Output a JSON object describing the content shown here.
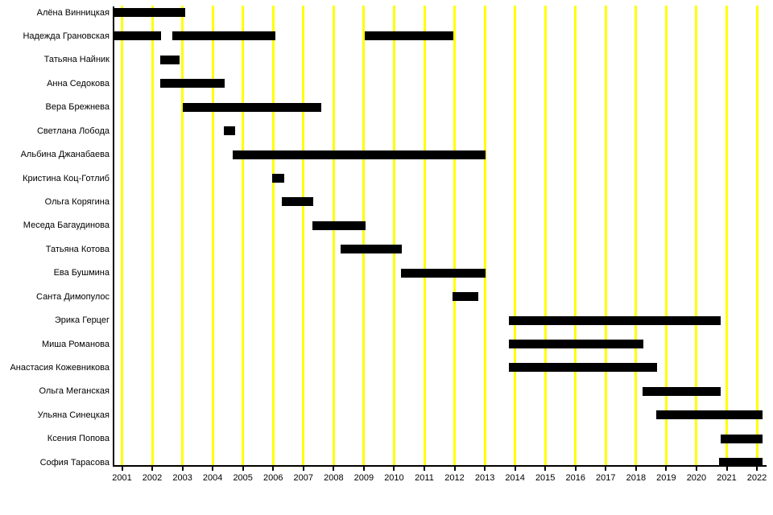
{
  "chart_data": {
    "type": "bar",
    "subtype": "gantt-timeline",
    "title": "",
    "xlabel": "",
    "ylabel": "",
    "legend": null,
    "x_ticks": [
      2001,
      2002,
      2003,
      2004,
      2005,
      2006,
      2007,
      2008,
      2009,
      2010,
      2011,
      2012,
      2013,
      2014,
      2015,
      2016,
      2017,
      2018,
      2019,
      2020,
      2021,
      2022
    ],
    "xlim": [
      2000.71,
      2022.19
    ],
    "grid": "vertical",
    "colors": {
      "bar": "#000000",
      "grid": "#ffff00",
      "axis": "#000000",
      "background": "#ffffff",
      "text": "#000000"
    },
    "rows": [
      {
        "label": "Алёна Винницкая",
        "intervals": [
          [
            2000.71,
            2003.09
          ]
        ]
      },
      {
        "label": "Надежда Грановская",
        "intervals": [
          [
            2000.71,
            2002.29
          ],
          [
            2002.66,
            2006.07
          ],
          [
            2009.03,
            2011.95
          ]
        ]
      },
      {
        "label": "Татьяна Найник",
        "intervals": [
          [
            2002.27,
            2002.9
          ]
        ]
      },
      {
        "label": "Анна Седокова",
        "intervals": [
          [
            2002.27,
            2004.4
          ]
        ]
      },
      {
        "label": "Вера Брежнева",
        "intervals": [
          [
            2003.02,
            2007.6
          ]
        ]
      },
      {
        "label": "Светлана Лобода",
        "intervals": [
          [
            2004.38,
            2004.73
          ]
        ]
      },
      {
        "label": "Альбина Джанабаева",
        "intervals": [
          [
            2004.67,
            2013.03
          ]
        ]
      },
      {
        "label": "Кристина Коц-Готлиб",
        "intervals": [
          [
            2005.97,
            2006.37
          ]
        ]
      },
      {
        "label": "Ольга Корягина",
        "intervals": [
          [
            2006.29,
            2007.33
          ]
        ]
      },
      {
        "label": "Меседа Багаудинова",
        "intervals": [
          [
            2007.31,
            2009.06
          ]
        ]
      },
      {
        "label": "Татьяна Котова",
        "intervals": [
          [
            2008.22,
            2010.26
          ]
        ]
      },
      {
        "label": "Ева Бушмина",
        "intervals": [
          [
            2010.23,
            2013.03
          ]
        ]
      },
      {
        "label": "Санта Димопулос",
        "intervals": [
          [
            2011.92,
            2012.78
          ]
        ]
      },
      {
        "label": "Эрика Герцег",
        "intervals": [
          [
            2013.79,
            2020.8
          ]
        ]
      },
      {
        "label": "Миша Романова",
        "intervals": [
          [
            2013.79,
            2018.25
          ]
        ]
      },
      {
        "label": "Анастасия Кожевникова",
        "intervals": [
          [
            2013.79,
            2018.71
          ]
        ]
      },
      {
        "label": "Ольга Меганская",
        "intervals": [
          [
            2018.22,
            2020.8
          ]
        ]
      },
      {
        "label": "Ульяна Синецкая",
        "intervals": [
          [
            2018.67,
            2022.19
          ]
        ]
      },
      {
        "label": "Ксения Попова",
        "intervals": [
          [
            2020.8,
            2022.19
          ]
        ]
      },
      {
        "label": "София Тарасова",
        "intervals": [
          [
            2020.75,
            2022.19
          ]
        ]
      }
    ]
  }
}
